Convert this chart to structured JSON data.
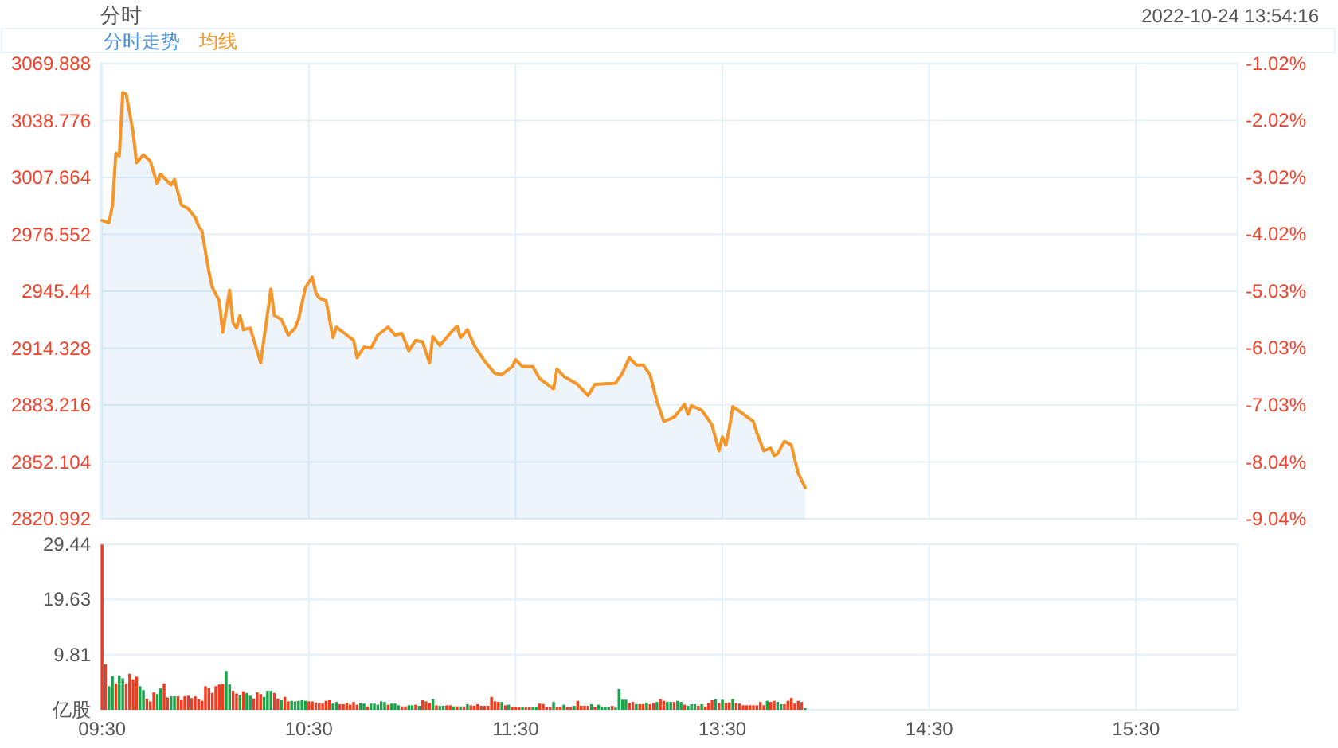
{
  "chart_data": [
    {
      "type": "line",
      "title": "分时",
      "subtitle": "2022-10-24 13:54:16",
      "legend": "top left",
      "grid": true,
      "tick_labels": "y",
      "categories": [
        null,
        null,
        null,
        null,
        null,
        null,
        null,
        null,
        null,
        null,
        null,
        null,
        null,
        null,
        null,
        null,
        null,
        null,
        null,
        null,
        null,
        null,
        null,
        null,
        null,
        null,
        null,
        null,
        null,
        null,
        null,
        null,
        null,
        null,
        null,
        null,
        null,
        null,
        null,
        null,
        null,
        null,
        null,
        null,
        null,
        null,
        null,
        null,
        null,
        null,
        null,
        null,
        null,
        null,
        null,
        null,
        null,
        null,
        null,
        null,
        null,
        null,
        null,
        null,
        null,
        null,
        null,
        null,
        null,
        null,
        null,
        null,
        null,
        null,
        null,
        null,
        null,
        null,
        null,
        null,
        null,
        null,
        null,
        null,
        null,
        null,
        null,
        null,
        null,
        null,
        null,
        null,
        null,
        null,
        null,
        null,
        null,
        null,
        null,
        null,
        null,
        null,
        null,
        null,
        null,
        null,
        null,
        null,
        null,
        null,
        null,
        null,
        null,
        null,
        null,
        null,
        null,
        null,
        null,
        null,
        null,
        null,
        null,
        null,
        null,
        null,
        null,
        null,
        null,
        null,
        null,
        null,
        null,
        null,
        null,
        null,
        null,
        null,
        null,
        null,
        null,
        null,
        null,
        null,
        null,
        null,
        null,
        null,
        null,
        null,
        null,
        null,
        null,
        null,
        null,
        null,
        null,
        null,
        null,
        null,
        null,
        null,
        null,
        null,
        null,
        null,
        null,
        null,
        null,
        null,
        null,
        null,
        null,
        null,
        null,
        null,
        null,
        null,
        null,
        null,
        null,
        null,
        null,
        null,
        null,
        null,
        null,
        null,
        null,
        null,
        null,
        null,
        null,
        null,
        null,
        null,
        null,
        null,
        null,
        null,
        null,
        null,
        null,
        null,
        null,
        null,
        null,
        null,
        null,
        null,
        null,
        null,
        null,
        null,
        null,
        null,
        null,
        null,
        null,
        null,
        null,
        null,
        null,
        null,
        null,
        null,
        null,
        null,
        null,
        null,
        null,
        null,
        null,
        null,
        null,
        null,
        null,
        null,
        null,
        null,
        null,
        null,
        null,
        null,
        null,
        null,
        null,
        null,
        null,
        null,
        null,
        null,
        null,
        null,
        null,
        null,
        null,
        null,
        null,
        null,
        null,
        null,
        null,
        null,
        null,
        null,
        null,
        null,
        null,
        null,
        null,
        null,
        null,
        null,
        null,
        null,
        null,
        null,
        null,
        null,
        null,
        null,
        null,
        null,
        null,
        null,
        null,
        null,
        null,
        null,
        null,
        null,
        null,
        null,
        null,
        null,
        null,
        null,
        null,
        null,
        null,
        null,
        null,
        null,
        null,
        null,
        null,
        null,
        null,
        null,
        null,
        null,
        null,
        null,
        null,
        null,
        null,
        null,
        null,
        null,
        null,
        null,
        null,
        null,
        null,
        null,
        null,
        null,
        null,
        null
      ],
      "ylim": [
        2820.992,
        3069.888
      ],
      "yticks": [
        2820.992,
        2852.104,
        2883.216,
        2914.328,
        2945.44,
        2976.552,
        3007.664,
        3038.776,
        3069.888
      ],
      "y2lim": [
        -9.04,
        -1.02
      ],
      "y2ticks": [
        {
          "value": -1.02,
          "label": "-1.02%"
        },
        {
          "value": -2.02,
          "label": "-2.02%"
        },
        {
          "value": -3.02,
          "label": "-3.02%"
        },
        {
          "value": -4.02,
          "label": "-4.02%"
        },
        {
          "value": -5.03,
          "label": "-5.03%"
        },
        {
          "value": -6.03,
          "label": "-6.03%"
        },
        {
          "value": -7.03,
          "label": "-7.03%"
        },
        {
          "value": -8.04,
          "label": "-8.04%"
        },
        {
          "value": -9.04,
          "label": "-9.04%"
        }
      ],
      "series": [
        {
          "name": "分时走势",
          "type": "area",
          "color": "#4a90e2",
          "values": [
            2984.1,
            null,
            2982.9,
            2992.1,
            3020.9,
            3019.5,
            3054.1,
            3053.2,
            null,
            3032.5,
            3015.7,
            null,
            3020.0,
            null,
            3016.6,
            null,
            3004.2,
            3009.4,
            null,
            null,
            3003.6,
            3006.5,
            null,
            2992.7,
            null,
            2990.6,
            null,
            2985.8,
            2981.1,
            2978.3,
            null,
            2956.1,
            2947.4,
            null,
            2940.3,
            2923.0,
            null,
            2946.0,
            2928.2,
            2925.3,
            2932.2,
            2924.4,
            null,
            2925.3,
            null,
            null,
            2906.3,
            null,
            null,
            2946.6,
            2932.2,
            null,
            2930.1,
            null,
            2921.5,
            null,
            2925.3,
            2930.1,
            null,
            2947.4,
            null,
            2953.2,
            2944.6,
            2941.7,
            null,
            2940.3,
            null,
            2920.1,
            2925.8,
            null,
            null,
            2921.5,
            null,
            2918.6,
            2909.1,
            null,
            2914.9,
            null,
            2914.3,
            null,
            2921.5,
            null,
            null,
            2925.8,
            null,
            2921.5,
            null,
            2922.4,
            null,
            2912.9,
            null,
            2918.6,
            null,
            2917.8,
            null,
            2906.3,
            2920.6,
            null,
            2915.8,
            null,
            null,
            2922.4,
            null,
            2926.4,
            2920.1,
            null,
            2924.4,
            null,
            2915.8,
            null,
            null,
            2907.2,
            null,
            null,
            2900.5,
            null,
            2899.9,
            null,
            null,
            2904.2,
            2908.0,
            null,
            2904.2,
            null,
            null,
            2904.2,
            null,
            2897.6,
            null,
            null,
            null,
            2892.1,
            2902.9,
            null,
            2898.9,
            null,
            null,
            null,
            2894.5,
            null,
            null,
            2888.4,
            null,
            2894.5,
            null,
            null,
            null,
            null,
            null,
            2895.2,
            null,
            2900.8,
            null,
            2909.1,
            null,
            2905.1,
            null,
            2905.1,
            null,
            2899.8,
            null,
            2885.3,
            null,
            2874.2,
            null,
            null,
            2876.6,
            null,
            null,
            2883.5,
            2878.2,
            2882.9,
            null,
            null,
            2880.4,
            null,
            2875.1,
            2872.1,
            null,
            2858.2,
            2865.8,
            2861.3,
            2870.5,
            2882.3,
            null,
            2879.8,
            null,
            null,
            null,
            2874.2,
            2868.0,
            null,
            2858.2,
            null,
            2859.7,
            2855.6,
            2856.6,
            null,
            2863.4,
            null,
            2861.3,
            null,
            2845.8,
            null,
            2838.1,
            null,
            null,
            null,
            null,
            null,
            null,
            null,
            null,
            null,
            null,
            null,
            null,
            null,
            null,
            null,
            null,
            null,
            null,
            null,
            null,
            null,
            null,
            null,
            null,
            null,
            null,
            null,
            null,
            null,
            null,
            null,
            null,
            null,
            null,
            null,
            null,
            null,
            null,
            null,
            null,
            null,
            null,
            null,
            null,
            null,
            null,
            null,
            null,
            null,
            null,
            null,
            null,
            null,
            null,
            null,
            null,
            null,
            null,
            null,
            null,
            null,
            null,
            null,
            null,
            null,
            null,
            null,
            null,
            null,
            null,
            null,
            null,
            null,
            null,
            null,
            null,
            null,
            null,
            null,
            null,
            null,
            null,
            null,
            null,
            null,
            null,
            null,
            null,
            null,
            null,
            null,
            null,
            null,
            null,
            null,
            null,
            null,
            null,
            null,
            null,
            null,
            null,
            null,
            null,
            null,
            null,
            null,
            null,
            null,
            null,
            null,
            null,
            null,
            null,
            null,
            null,
            null,
            null,
            null,
            null,
            null,
            null,
            null,
            null,
            null
          ]
        },
        {
          "name": "均线",
          "color": "#f5962a",
          "values": [
            2984.1,
            null,
            2982.9,
            2992.1,
            3020.9,
            3019.5,
            3054.1,
            3053.2,
            null,
            3032.5,
            3015.7,
            null,
            3020.0,
            null,
            3016.6,
            null,
            3004.2,
            3009.4,
            null,
            null,
            3003.6,
            3006.5,
            null,
            2992.7,
            null,
            2990.6,
            null,
            2985.8,
            2981.1,
            2978.3,
            null,
            2956.1,
            2947.4,
            null,
            2940.3,
            2923.0,
            null,
            2946.0,
            2928.2,
            2925.3,
            2932.2,
            2924.4,
            null,
            2925.3,
            null,
            null,
            2906.3,
            null,
            null,
            2946.6,
            2932.2,
            null,
            2930.1,
            null,
            2921.5,
            null,
            2925.3,
            2930.1,
            null,
            2947.4,
            null,
            2953.2,
            2944.6,
            2941.7,
            null,
            2940.3,
            null,
            2920.1,
            2925.8,
            null,
            null,
            2921.5,
            null,
            2918.6,
            2909.1,
            null,
            2914.9,
            null,
            2914.3,
            null,
            2921.5,
            null,
            null,
            2925.8,
            null,
            2921.5,
            null,
            2922.4,
            null,
            2912.9,
            null,
            2918.6,
            null,
            2917.8,
            null,
            2906.3,
            2920.6,
            null,
            2915.8,
            null,
            null,
            2922.4,
            null,
            2926.4,
            2920.1,
            null,
            2924.4,
            null,
            2915.8,
            null,
            null,
            2907.2,
            null,
            null,
            2900.5,
            null,
            2899.9,
            null,
            null,
            2904.2,
            2908.0,
            null,
            2904.2,
            null,
            null,
            2904.2,
            null,
            2897.6,
            null,
            null,
            null,
            2892.1,
            2902.9,
            null,
            2898.9,
            null,
            null,
            null,
            2894.5,
            null,
            null,
            2888.4,
            null,
            2894.5,
            null,
            null,
            null,
            null,
            null,
            2895.2,
            null,
            2900.8,
            null,
            2909.1,
            null,
            2905.1,
            null,
            2905.1,
            null,
            2899.8,
            null,
            2885.3,
            null,
            2874.2,
            null,
            null,
            2876.6,
            null,
            null,
            2883.5,
            2878.2,
            2882.9,
            null,
            null,
            2880.4,
            null,
            2875.1,
            2872.1,
            null,
            2858.2,
            2865.8,
            2861.3,
            2870.5,
            2882.3,
            null,
            2879.8,
            null,
            null,
            null,
            2874.2,
            2868.0,
            null,
            2858.2,
            null,
            2859.7,
            2855.6,
            2856.6,
            null,
            2863.4,
            null,
            2861.3,
            null,
            2845.8,
            null,
            2838.1,
            null,
            null,
            null,
            null,
            null,
            null,
            null,
            null,
            null,
            null,
            null,
            null,
            null,
            null,
            null,
            null,
            null,
            null,
            null,
            null,
            null,
            null,
            null,
            null,
            null,
            null,
            null,
            null,
            null,
            null,
            null,
            null,
            null,
            null,
            null,
            null,
            null,
            null,
            null,
            null,
            null,
            null,
            null,
            null,
            null,
            null,
            null,
            null,
            null,
            null,
            null,
            null,
            null,
            null,
            null,
            null,
            null,
            null,
            null,
            null,
            null,
            null,
            null,
            null,
            null,
            null,
            null,
            null,
            null,
            null,
            null,
            null,
            null,
            null,
            null,
            null,
            null,
            null,
            null,
            null,
            null,
            null,
            null,
            null,
            null,
            null,
            null,
            null,
            null,
            null,
            null,
            null,
            null,
            null,
            null,
            null,
            null,
            null,
            null,
            null,
            null,
            null,
            null,
            null,
            null,
            null,
            null,
            null,
            null,
            null,
            null,
            null,
            null,
            null,
            null,
            null,
            null,
            null,
            null,
            null,
            null,
            null,
            null,
            null,
            null
          ]
        }
      ]
    },
    {
      "type": "bar",
      "ylabel": "亿股",
      "grid": true,
      "categories": [
        "09:30",
        null,
        null,
        null,
        null,
        null,
        null,
        null,
        null,
        null,
        null,
        null,
        null,
        null,
        null,
        null,
        null,
        null,
        null,
        null,
        null,
        null,
        null,
        null,
        null,
        null,
        null,
        null,
        null,
        null,
        null,
        null,
        null,
        null,
        null,
        null,
        null,
        null,
        null,
        null,
        null,
        null,
        null,
        null,
        null,
        null,
        null,
        null,
        null,
        null,
        null,
        null,
        null,
        null,
        null,
        null,
        null,
        null,
        null,
        null,
        "10:30",
        null,
        null,
        null,
        null,
        null,
        null,
        null,
        null,
        null,
        null,
        null,
        null,
        null,
        null,
        null,
        null,
        null,
        null,
        null,
        null,
        null,
        null,
        null,
        null,
        null,
        null,
        null,
        null,
        null,
        null,
        null,
        null,
        null,
        null,
        null,
        null,
        null,
        null,
        null,
        null,
        null,
        null,
        null,
        null,
        null,
        null,
        null,
        null,
        null,
        null,
        null,
        null,
        null,
        null,
        null,
        null,
        null,
        null,
        null,
        "11:30",
        null,
        null,
        null,
        null,
        null,
        null,
        null,
        null,
        null,
        null,
        null,
        null,
        null,
        null,
        null,
        null,
        null,
        null,
        null,
        null,
        null,
        null,
        null,
        null,
        null,
        null,
        null,
        null,
        null,
        null,
        null,
        null,
        null,
        null,
        null,
        null,
        null,
        null,
        null,
        null,
        null,
        null,
        null,
        null,
        null,
        null,
        null,
        null,
        null,
        null,
        null,
        null,
        null,
        null,
        null,
        null,
        null,
        null,
        null,
        "13:30",
        null,
        null,
        null,
        null,
        null,
        null,
        null,
        null,
        null,
        null,
        null,
        null,
        null,
        null,
        null,
        null,
        null,
        null,
        null,
        null,
        null,
        null,
        null,
        null,
        null,
        null,
        null,
        null,
        null,
        null,
        null,
        null,
        null,
        null,
        null,
        null,
        null,
        null,
        null,
        null,
        null,
        null,
        null,
        null,
        null,
        null,
        null,
        null,
        null,
        null,
        null,
        null,
        null,
        null,
        null,
        null,
        null,
        null,
        null,
        "14:30",
        null,
        null,
        null,
        null,
        null,
        null,
        null,
        null,
        null,
        null,
        null,
        null,
        null,
        null,
        null,
        null,
        null,
        null,
        null,
        null,
        null,
        null,
        null,
        null,
        null,
        null,
        null,
        null,
        null,
        null,
        null,
        null,
        null,
        null,
        null,
        null,
        null,
        null,
        null,
        null,
        null,
        null,
        null,
        null,
        null,
        null,
        null,
        null,
        null,
        null,
        null,
        null,
        null,
        null,
        null,
        null,
        null,
        null,
        null,
        "15:30",
        null,
        null,
        null,
        null,
        null,
        null,
        null,
        null,
        null,
        null,
        null,
        null,
        null,
        null,
        null,
        null,
        null,
        null,
        null,
        null,
        null,
        null,
        null,
        null,
        null,
        null,
        null,
        null,
        null
      ],
      "ylim": [
        0,
        29.44
      ],
      "yticks": [
        9.81,
        19.63,
        29.44
      ],
      "values": [
        29.4,
        8.1,
        4.2,
        6.0,
        4.7,
        6.1,
        5.6,
        4.7,
        6.4,
        5.4,
        5.9,
        4.2,
        3.5,
        2.0,
        1.5,
        3.1,
        2.8,
        3.8,
        4.7,
        2.2,
        2.4,
        2.4,
        2.4,
        1.7,
        2.4,
        2.5,
        2.1,
        2.4,
        1.9,
        1.6,
        4.2,
        3.9,
        3.0,
        4.2,
        4.5,
        4.6,
        6.9,
        4.5,
        3.4,
        2.9,
        2.6,
        3.3,
        3.0,
        2.5,
        2.0,
        3.1,
        2.8,
        2.3,
        3.4,
        3.4,
        3.0,
        2.0,
        1.7,
        2.3,
        1.5,
        1.6,
        1.5,
        1.6,
        1.7,
        1.6,
        1.5,
        1.5,
        1.3,
        1.2,
        1.1,
        1.6,
        1.7,
        1.1,
        1.4,
        1.0,
        1.0,
        1.2,
        0.9,
        1.4,
        0.9,
        1.2,
        1.1,
        0.6,
        1.1,
        1.1,
        0.9,
        1.5,
        1.4,
        0.9,
        1.1,
        1.1,
        0.8,
        0.6,
        0.6,
        0.8,
        0.8,
        0.9,
        0.7,
        1.7,
        1.5,
        1.2,
        1.9,
        0.8,
        0.7,
        0.7,
        0.8,
        0.8,
        0.6,
        0.6,
        0.6,
        0.6,
        1.0,
        0.8,
        0.7,
        1.0,
        0.7,
        0.7,
        0.7,
        2.3,
        1.5,
        1.4,
        1.4,
        0.8,
        0.9,
        0.5,
        0.5,
        0.5,
        0.5,
        0.5,
        0.5,
        0.5,
        0.5,
        1.1,
        1.0,
        0.5,
        0.5,
        1.4,
        0.5,
        0.5,
        0.9,
        0.5,
        0.5,
        0.7,
        1.6,
        0.7,
        0.7,
        0.7,
        1.0,
        0.5,
        0.9,
        0.5,
        0.5,
        0.5,
        0.7,
        0.4,
        3.7,
        1.8,
        1.8,
        1.2,
        1.4,
        1.0,
        1.0,
        1.0,
        1.3,
        1.0,
        1.2,
        1.4,
        1.9,
        1.6,
        1.4,
        1.4,
        1.4,
        1.6,
        1.4,
        0.9,
        0.7,
        1.0,
        1.0,
        0.7,
        1.0,
        0.6,
        1.2,
        1.7,
        1.9,
        1.2,
        1.8,
        1.2,
        1.3,
        1.9,
        1.2,
        1.1,
        0.8,
        0.8,
        0.8,
        0.8,
        0.8,
        1.4,
        0.8,
        1.6,
        1.4,
        1.6,
        1.4,
        1.0,
        1.0,
        1.6,
        2.1,
        1.1,
        1.6,
        1.4,
        0.3,
        null,
        null,
        null,
        null,
        null,
        null,
        null,
        null,
        null,
        null,
        null,
        null,
        null,
        null,
        null,
        null,
        null,
        null,
        null,
        null,
        null,
        null,
        null,
        null,
        null,
        null,
        null,
        null,
        null,
        null,
        null,
        null,
        null,
        null,
        null,
        null,
        null,
        null,
        null,
        null,
        null,
        null,
        null,
        null,
        null,
        null,
        null,
        null,
        null,
        null,
        null,
        null,
        null,
        null,
        null,
        null,
        null,
        null,
        null,
        null,
        null,
        null,
        null,
        null,
        null,
        null,
        null,
        null,
        null,
        null,
        null,
        null,
        null,
        null,
        null,
        null,
        null,
        null,
        null,
        null,
        null,
        null,
        null,
        null,
        null,
        null,
        null,
        null,
        null,
        null,
        null,
        null,
        null,
        null,
        null,
        null,
        null,
        null,
        null,
        null,
        null,
        null,
        null,
        null,
        null,
        null,
        null,
        null,
        null,
        null,
        null,
        null,
        null,
        null,
        null,
        null,
        null,
        null,
        null,
        null,
        null,
        null,
        null,
        null,
        null
      ],
      "colors": [
        "#f23a1f",
        "#f23a1f",
        "#1aa34a",
        "#1aa34a",
        "#f23a1f",
        "#1aa34a",
        "#1aa34a",
        "#f23a1f",
        "#f23a1f",
        "#f23a1f",
        "#f23a1f",
        "#1aa34a",
        "#1aa34a",
        "#f23a1f",
        "#f23a1f",
        "#f23a1f",
        "#1aa34a",
        "#1aa34a",
        "#f23a1f",
        "#f23a1f",
        "#1aa34a",
        "#1aa34a",
        "#f23a1f",
        "#f23a1f",
        "#f23a1f",
        "#f23a1f",
        "#f23a1f",
        "#f23a1f",
        "#f23a1f",
        "#f23a1f",
        "#f23a1f",
        "#f23a1f",
        "#f23a1f",
        "#f23a1f",
        "#f23a1f",
        "#f23a1f",
        "#1aa34a",
        "#1aa34a",
        "#f23a1f",
        "#f23a1f",
        "#1aa34a",
        "#f23a1f",
        "#1aa34a",
        "#1aa34a",
        "#f23a1f",
        "#f23a1f",
        "#f23a1f",
        "#1aa34a",
        "#1aa34a",
        "#1aa34a",
        "#f23a1f",
        "#f23a1f",
        "#1aa34a",
        "#f23a1f",
        "#f23a1f",
        "#1aa34a",
        "#1aa34a",
        "#1aa34a",
        "#1aa34a",
        "#1aa34a",
        "#f23a1f",
        "#f23a1f",
        "#f23a1f",
        "#f23a1f",
        "#f23a1f",
        "#f23a1f",
        "#f23a1f",
        "#1aa34a",
        "#1aa34a",
        "#f23a1f",
        "#f23a1f",
        "#f23a1f",
        "#f23a1f",
        "#f23a1f",
        "#f23a1f",
        "#1aa34a",
        "#1aa34a",
        "#f23a1f",
        "#1aa34a",
        "#1aa34a",
        "#1aa34a",
        "#1aa34a",
        "#1aa34a",
        "#f23a1f",
        "#1aa34a",
        "#1aa34a",
        "#1aa34a",
        "#f23a1f",
        "#f23a1f",
        "#1aa34a",
        "#1aa34a",
        "#f23a1f",
        "#1aa34a",
        "#f23a1f",
        "#f23a1f",
        "#f23a1f",
        "#1aa34a",
        "#f23a1f",
        "#1aa34a",
        "#1aa34a",
        "#f23a1f",
        "#f23a1f",
        "#1aa34a",
        "#f23a1f",
        "#1aa34a",
        "#f23a1f",
        "#1aa34a",
        "#f23a1f",
        "#f23a1f",
        "#f23a1f",
        "#f23a1f",
        "#f23a1f",
        "#f23a1f",
        "#f23a1f",
        "#f23a1f",
        "#f23a1f",
        "#1aa34a",
        "#f23a1f",
        "#1aa34a",
        "#f23a1f",
        "#f23a1f",
        "#f23a1f",
        "#1aa34a",
        "#f23a1f",
        "#f23a1f",
        "#1aa34a",
        "#1aa34a",
        "#f23a1f",
        "#f23a1f",
        "#f23a1f",
        "#f23a1f",
        "#1aa34a",
        "#f23a1f",
        "#f23a1f",
        "#1aa34a",
        "#f23a1f",
        "#f23a1f",
        "#1aa34a",
        "#f23a1f",
        "#f23a1f",
        "#f23a1f",
        "#f23a1f",
        "#1aa34a",
        "#f23a1f",
        "#1aa34a",
        "#1aa34a",
        "#1aa34a",
        "#1aa34a",
        "#f23a1f",
        "#1aa34a",
        "#1aa34a",
        "#1aa34a",
        "#1aa34a",
        "#f23a1f",
        "#f23a1f",
        "#1aa34a",
        "#f23a1f",
        "#f23a1f",
        "#1aa34a",
        "#f23a1f",
        "#f23a1f",
        "#1aa34a",
        "#f23a1f",
        "#f23a1f",
        "#1aa34a",
        "#1aa34a",
        "#f23a1f",
        "#1aa34a",
        "#1aa34a",
        "#f23a1f",
        "#1aa34a",
        "#1aa34a",
        "#1aa34a",
        "#f23a1f",
        "#1aa34a",
        "#f23a1f",
        "#f23a1f",
        "#f23a1f",
        "#1aa34a",
        "#f23a1f",
        "#1aa34a",
        "#f23a1f",
        "#f23a1f",
        "#1aa34a",
        "#f23a1f",
        "#f23a1f",
        "#f23a1f",
        "#f23a1f",
        "#f23a1f",
        "#f23a1f",
        "#f23a1f",
        "#f23a1f",
        "#f23a1f",
        "#1aa34a",
        "#f23a1f",
        "#f23a1f",
        "#1aa34a",
        "#1aa34a",
        "#f23a1f",
        "#f23a1f",
        "#f23a1f",
        "#f23a1f",
        "#f23a1f",
        "#f23a1f",
        "#1aa34a",
        null,
        null,
        null,
        null,
        null,
        null,
        null,
        null,
        null,
        null,
        null,
        null,
        null,
        null,
        null,
        null,
        null,
        null,
        null,
        null,
        null,
        null,
        null,
        null,
        null,
        null,
        null,
        null,
        null,
        null,
        null,
        null,
        null,
        null,
        null,
        null,
        null,
        null,
        null,
        null,
        null,
        null,
        null,
        null,
        null,
        null,
        null,
        null,
        null,
        null,
        null,
        null,
        null,
        null,
        null,
        null,
        null,
        null,
        null,
        null,
        null,
        null,
        null,
        null,
        null,
        null,
        null,
        null,
        null,
        null,
        null,
        null,
        null,
        null,
        null,
        null,
        null,
        null,
        null,
        null,
        null,
        null,
        null,
        null,
        null,
        null,
        null,
        null,
        null,
        null,
        null,
        null,
        null,
        null,
        null,
        null,
        null,
        null,
        null,
        null,
        null,
        null,
        null,
        null,
        null,
        null,
        null,
        null,
        null,
        null,
        null,
        null,
        null,
        null,
        null,
        null,
        null,
        null,
        null,
        null,
        null,
        null,
        null,
        null,
        null
      ]
    }
  ]
}
